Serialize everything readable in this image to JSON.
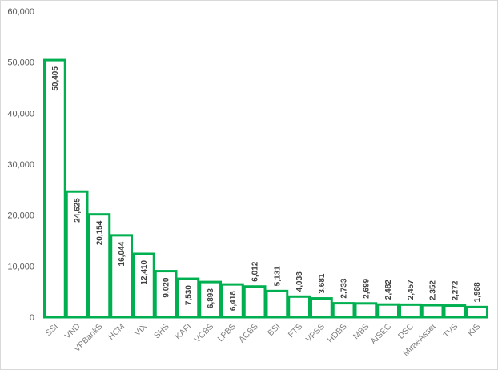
{
  "chart_data": {
    "type": "bar",
    "title": "",
    "xlabel": "",
    "ylabel": "",
    "ylim": [
      0,
      60000
    ],
    "yticks": [
      "0",
      "10,000",
      "20,000",
      "30,000",
      "40,000",
      "50,000",
      "60,000"
    ],
    "ytick_values": [
      0,
      10000,
      20000,
      30000,
      40000,
      50000,
      60000
    ],
    "grid": false,
    "categories": [
      "SSI",
      "VND",
      "VPBankS",
      "HCM",
      "VIX",
      "SHS",
      "KAFI",
      "VCBS",
      "LPBS",
      "ACBS",
      "BSI",
      "FTS",
      "VPSS",
      "HDBS",
      "MBS",
      "AISEC",
      "DSC",
      "MiraeAsset",
      "TVS",
      "KIS"
    ],
    "values": [
      50405,
      24625,
      20154,
      16044,
      12410,
      9020,
      7530,
      6893,
      6418,
      6012,
      5131,
      4038,
      3681,
      2733,
      2699,
      2482,
      2457,
      2352,
      2272,
      1988
    ],
    "labels": [
      "50,405",
      "24,625",
      "20,154",
      "16,044",
      "12,410",
      "9,020",
      "7,530",
      "6,893",
      "6,418",
      "6,012",
      "5,131",
      "4,038",
      "3,681",
      "2,733",
      "2,699",
      "2,482",
      "2,457",
      "2,352",
      "2,272",
      "1,988"
    ],
    "bar_color": "#00b050"
  }
}
